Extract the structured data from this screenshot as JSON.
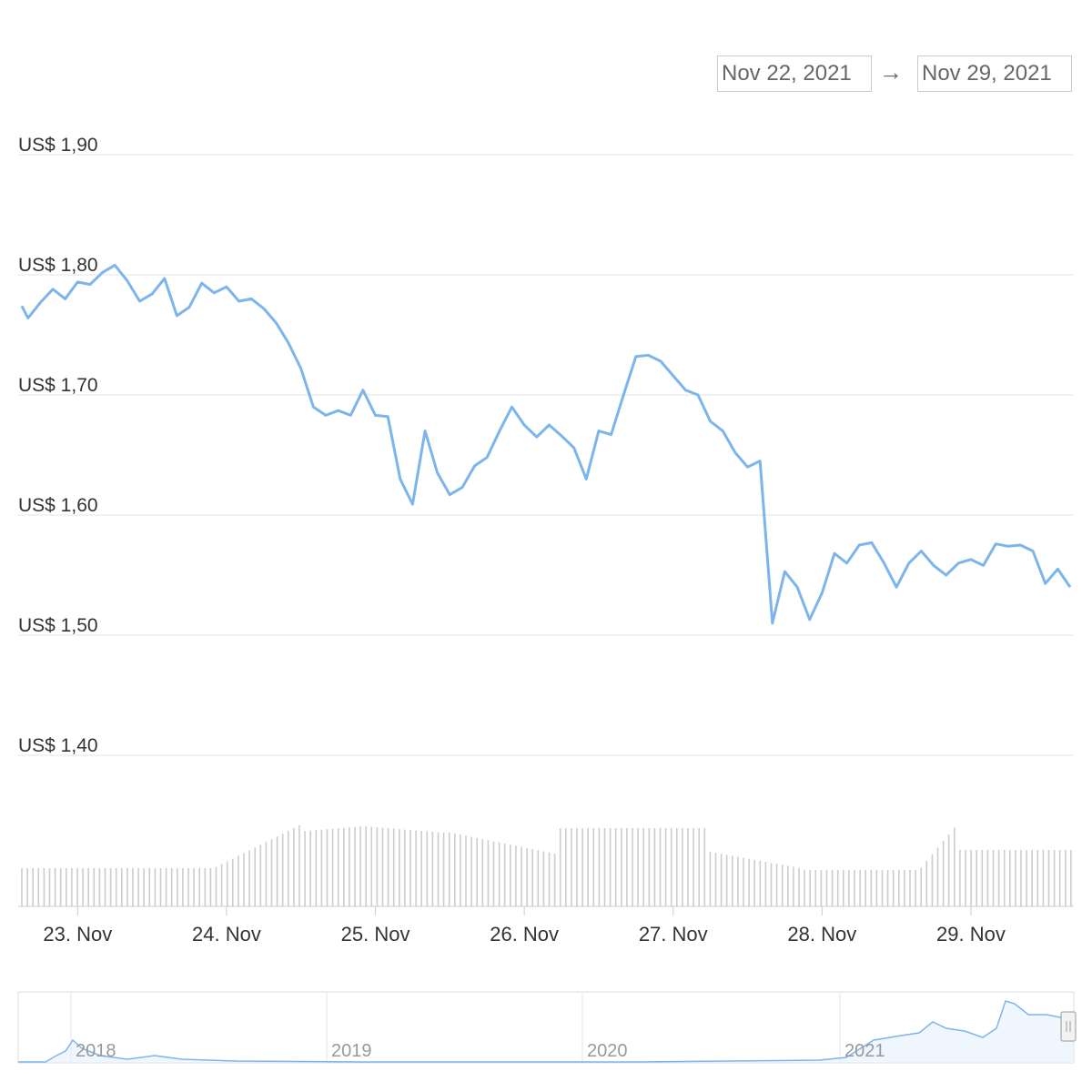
{
  "range_selector": {
    "from": "Nov 22, 2021",
    "arrow": "→",
    "to": "Nov 29, 2021"
  },
  "colors": {
    "line": "#7cb5ec",
    "grid": "#e6e6e6",
    "volume": "#cccccc",
    "navigator_mask": "#f2f7fd"
  },
  "chart_data": [
    {
      "type": "line",
      "title": "",
      "ylabel": "",
      "xlabel": "",
      "ylim": [
        1.4,
        1.9
      ],
      "yticks": [
        1.9,
        1.8,
        1.7,
        1.6,
        1.5,
        1.4
      ],
      "ytick_labels": [
        "US$ 1,90",
        "US$ 1,80",
        "US$ 1,70",
        "US$ 1,60",
        "US$ 1,50",
        "US$ 1,40"
      ],
      "x_start": "2021-11-22T15:00",
      "x_end": "2021-11-29T16:00",
      "xticks": [
        "2021-11-23",
        "2021-11-24",
        "2021-11-25",
        "2021-11-26",
        "2021-11-27",
        "2021-11-28",
        "2021-11-29"
      ],
      "xtick_labels": [
        "23. Nov",
        "24. Nov",
        "25. Nov",
        "26. Nov",
        "27. Nov",
        "28. Nov",
        "29. Nov"
      ],
      "series": [
        {
          "x": [
            "2021-11-22T15:00",
            "2021-11-22T16:00",
            "2021-11-22T18:00",
            "2021-11-22T20:00",
            "2021-11-22T22:00",
            "2021-11-23T00:00",
            "2021-11-23T02:00",
            "2021-11-23T04:00",
            "2021-11-23T06:00",
            "2021-11-23T08:00",
            "2021-11-23T10:00",
            "2021-11-23T12:00",
            "2021-11-23T14:00",
            "2021-11-23T16:00",
            "2021-11-23T18:00",
            "2021-11-23T20:00",
            "2021-11-23T22:00",
            "2021-11-24T00:00",
            "2021-11-24T02:00",
            "2021-11-24T04:00",
            "2021-11-24T06:00",
            "2021-11-24T08:00",
            "2021-11-24T10:00",
            "2021-11-24T12:00",
            "2021-11-24T14:00",
            "2021-11-24T16:00",
            "2021-11-24T18:00",
            "2021-11-24T20:00",
            "2021-11-24T22:00",
            "2021-11-25T00:00",
            "2021-11-25T02:00",
            "2021-11-25T04:00",
            "2021-11-25T06:00",
            "2021-11-25T08:00",
            "2021-11-25T10:00",
            "2021-11-25T12:00",
            "2021-11-25T14:00",
            "2021-11-25T16:00",
            "2021-11-25T18:00",
            "2021-11-25T20:00",
            "2021-11-25T22:00",
            "2021-11-26T00:00",
            "2021-11-26T02:00",
            "2021-11-26T04:00",
            "2021-11-26T06:00",
            "2021-11-26T08:00",
            "2021-11-26T10:00",
            "2021-11-26T12:00",
            "2021-11-26T14:00",
            "2021-11-26T16:00",
            "2021-11-26T18:00",
            "2021-11-26T20:00",
            "2021-11-26T22:00",
            "2021-11-27T00:00",
            "2021-11-27T02:00",
            "2021-11-27T04:00",
            "2021-11-27T06:00",
            "2021-11-27T08:00",
            "2021-11-27T10:00",
            "2021-11-27T12:00",
            "2021-11-27T14:00",
            "2021-11-27T16:00",
            "2021-11-27T18:00",
            "2021-11-27T20:00",
            "2021-11-27T22:00",
            "2021-11-28T00:00",
            "2021-11-28T02:00",
            "2021-11-28T04:00",
            "2021-11-28T06:00",
            "2021-11-28T08:00",
            "2021-11-28T10:00",
            "2021-11-28T12:00",
            "2021-11-28T14:00",
            "2021-11-28T16:00",
            "2021-11-28T18:00",
            "2021-11-28T20:00",
            "2021-11-28T22:00",
            "2021-11-29T00:00",
            "2021-11-29T02:00",
            "2021-11-29T04:00",
            "2021-11-29T06:00",
            "2021-11-29T08:00",
            "2021-11-29T10:00",
            "2021-11-29T12:00",
            "2021-11-29T14:00",
            "2021-11-29T16:00"
          ],
          "values": [
            1.774,
            1.764,
            1.777,
            1.788,
            1.78,
            1.794,
            1.792,
            1.802,
            1.808,
            1.795,
            1.778,
            1.784,
            1.797,
            1.766,
            1.773,
            1.793,
            1.785,
            1.79,
            1.778,
            1.78,
            1.772,
            1.76,
            1.743,
            1.722,
            1.69,
            1.683,
            1.687,
            1.683,
            1.704,
            1.683,
            1.682,
            1.63,
            1.609,
            1.67,
            1.635,
            1.617,
            1.623,
            1.641,
            1.648,
            1.67,
            1.69,
            1.675,
            1.665,
            1.675,
            1.666,
            1.656,
            1.63,
            1.67,
            1.667,
            1.7,
            1.732,
            1.733,
            1.728,
            1.716,
            1.704,
            1.7,
            1.678,
            1.67,
            1.652,
            1.64,
            1.645,
            1.51,
            1.553,
            1.54,
            1.513,
            1.535,
            1.568,
            1.56,
            1.575,
            1.577,
            1.56,
            1.54,
            1.56,
            1.57,
            1.558,
            1.55,
            1.56,
            1.563,
            1.558,
            1.576,
            1.574,
            1.575,
            1.57,
            1.543,
            1.555,
            1.54
          ]
        }
      ],
      "volume_baseline": true
    },
    {
      "type": "area",
      "role": "navigator",
      "xtick_labels": [
        "2018",
        "2019",
        "2020",
        "2021"
      ]
    }
  ]
}
